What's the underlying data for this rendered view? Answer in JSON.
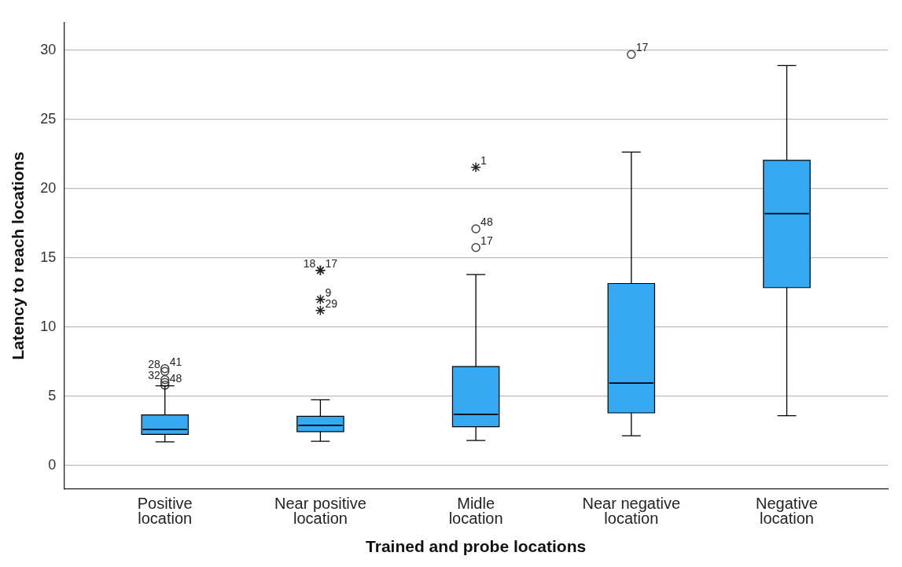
{
  "chart_data": {
    "type": "box",
    "xlabel": "Trained and probe locations",
    "ylabel": "Latency to reach locations",
    "categories": [
      "Positive location",
      "Near positive location",
      "Midle location",
      "Near negative location",
      "Negative location"
    ],
    "ylim": [
      -1.7,
      32
    ],
    "yticks": [
      0,
      5,
      10,
      15,
      20,
      25,
      30
    ],
    "grid": "y",
    "legend": false,
    "series": [
      {
        "type": "box",
        "color": "#35aaf2",
        "boxes": [
          {
            "low": 1.7,
            "q1": 2.25,
            "median": 2.6,
            "q3": 3.65,
            "high": 5.75
          },
          {
            "low": 1.75,
            "q1": 2.45,
            "median": 2.9,
            "q3": 3.55,
            "high": 4.75
          },
          {
            "low": 1.8,
            "q1": 2.8,
            "median": 3.7,
            "q3": 7.15,
            "high": 13.8
          },
          {
            "low": 2.15,
            "q1": 3.8,
            "median": 5.95,
            "q3": 13.15,
            "high": 22.65
          },
          {
            "low": 3.6,
            "q1": 12.85,
            "median": 18.2,
            "q3": 22.05,
            "high": 28.9
          }
        ]
      },
      {
        "type": "scatter",
        "color": "#444444",
        "marker": "circle",
        "x": [
          "Positive location",
          "Positive location",
          "Positive location",
          "Positive location",
          "Positive location",
          "Midle location",
          "Midle location",
          "Near negative location"
        ],
        "values": [
          5.8,
          6.0,
          6.2,
          6.8,
          7.0,
          15.75,
          17.1,
          29.7
        ]
      },
      {
        "type": "scatter",
        "color": "#222222",
        "marker": "cross",
        "x": [
          "Near positive location",
          "Near positive location",
          "Near positive location",
          "Near positive location",
          "Midle location"
        ],
        "values": [
          14.1,
          14.1,
          12.0,
          11.2,
          21.55
        ]
      }
    ],
    "annotations": [
      {
        "text": "41",
        "x": "Positive location",
        "y": 7.0
      },
      {
        "text": "28",
        "x": "Positive location",
        "y": 6.8
      },
      {
        "text": "48",
        "x": "Positive location",
        "y": 5.8
      },
      {
        "text": "32",
        "x": "Positive location",
        "y": 6.0
      },
      {
        "text": "17",
        "x": "Near positive location",
        "y": 14.1
      },
      {
        "text": "18",
        "x": "Near positive location",
        "y": 14.1
      },
      {
        "text": "9",
        "x": "Near positive location",
        "y": 12.0
      },
      {
        "text": "29",
        "x": "Near positive location",
        "y": 11.2
      },
      {
        "text": "1",
        "x": "Midle location",
        "y": 21.55
      },
      {
        "text": "48",
        "x": "Midle location",
        "y": 17.1
      },
      {
        "text": "17",
        "x": "Midle location",
        "y": 15.75
      },
      {
        "text": "17",
        "x": "Near negative location",
        "y": 29.7
      }
    ]
  }
}
